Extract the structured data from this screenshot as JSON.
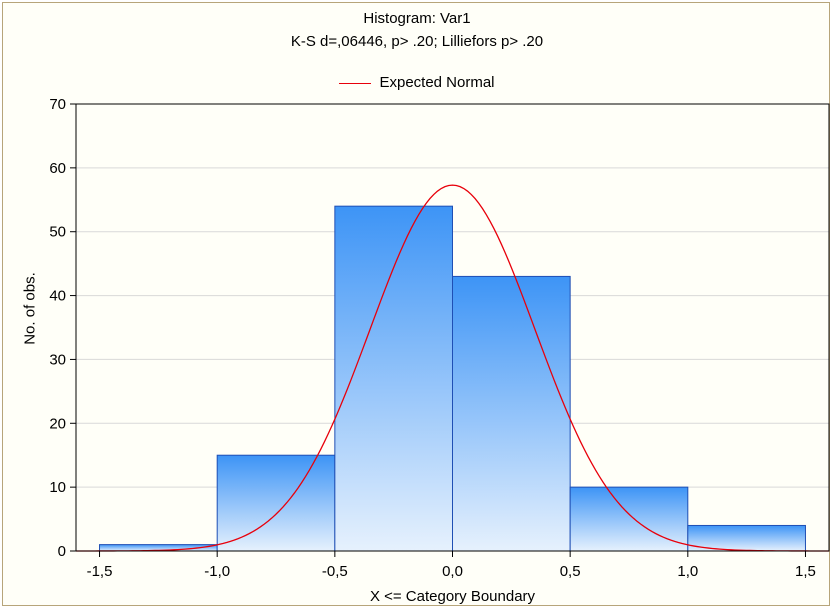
{
  "chart_data": {
    "type": "bar",
    "title": "Histogram: Var1",
    "subtitle": "K-S d=,06446, p> .20; Lilliefors p> .20",
    "legend": [
      {
        "name": "Expected Normal",
        "color": "#e8000b",
        "placement": "top-center"
      }
    ],
    "xlabel": "X <= Category Boundary",
    "ylabel": "No. of obs.",
    "xlim": [
      -1.6,
      1.6
    ],
    "ylim": [
      0,
      70
    ],
    "xticks": [
      -1.5,
      -1.0,
      -0.5,
      0.0,
      0.5,
      1.0,
      1.5
    ],
    "xtick_labels": [
      "-1,5",
      "-1,0",
      "-0,5",
      "0,0",
      "0,5",
      "1,0",
      "1,5"
    ],
    "yticks": [
      0,
      10,
      20,
      30,
      40,
      50,
      60,
      70
    ],
    "ytick_labels": [
      "0",
      "10",
      "20",
      "30",
      "40",
      "50",
      "60",
      "70"
    ],
    "grid": true,
    "bins": [
      {
        "x0": -1.5,
        "x1": -1.0,
        "value": 1
      },
      {
        "x0": -1.0,
        "x1": -0.5,
        "value": 15
      },
      {
        "x0": -0.5,
        "x1": 0.0,
        "value": 54
      },
      {
        "x0": 0.0,
        "x1": 0.5,
        "value": 43
      },
      {
        "x0": 0.5,
        "x1": 1.0,
        "value": 10
      },
      {
        "x0": 1.0,
        "x1": 1.5,
        "value": 4
      }
    ],
    "expected_normal": {
      "mean": 0.0,
      "peak": 57.3,
      "sd": 0.35,
      "x_range": [
        -1.6,
        1.6
      ]
    },
    "colors": {
      "bar_top": "#3d94f6",
      "bar_bottom": "#e6f1fd",
      "bar_edge": "#1f4fb4",
      "curve": "#e8000b",
      "grid": "#d9d9d9"
    }
  }
}
